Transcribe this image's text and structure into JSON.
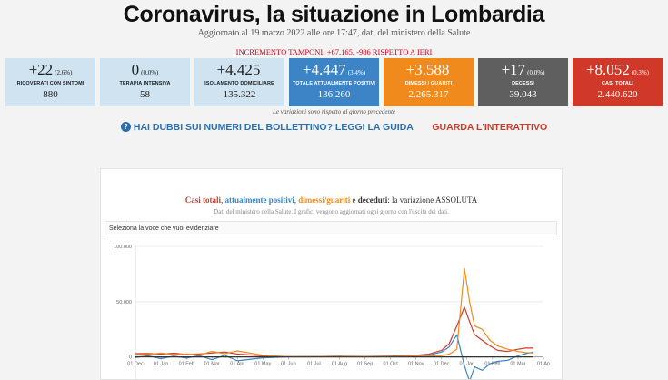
{
  "header": {
    "title": "Coronavirus, la situazione in Lombardia",
    "subtitle": "Aggiornato al 19 marzo 2022 alle ore 17:47, dati del ministero della Salute",
    "tamponi": "INCREMENTO TAMPONI: +67.165, -986 RISPETTO A IERI"
  },
  "cards": [
    {
      "delta": "+22",
      "pct": "(2,6%)",
      "label": "RICOVERATI CON SINTOMI",
      "value": "880",
      "style": "light"
    },
    {
      "delta": "0",
      "pct": "(0,0%)",
      "label": "TERAPIA INTENSIVA",
      "value": "58",
      "style": "light"
    },
    {
      "delta": "+4.425",
      "pct": "",
      "label": "ISOLAMENTO DOMICILIARE",
      "value": "135.322",
      "style": "light"
    },
    {
      "delta": "+4.447",
      "pct": "(3,4%)",
      "label": "TOTALE ATTUALMENTE POSITIVI",
      "value": "136.260",
      "style": "blue"
    },
    {
      "delta": "+3.588",
      "pct": "",
      "label": "DIMESSI / GUARITI",
      "value": "2.265.317",
      "style": "orange"
    },
    {
      "delta": "+17",
      "pct": "(0,0%)",
      "label": "DECESSI",
      "value": "39.043",
      "style": "gray"
    },
    {
      "delta": "+8.052",
      "pct": "(0,3%)",
      "label": "CASI TOTALI",
      "value": "2.440.620",
      "style": "red"
    }
  ],
  "note": "Le variazioni sono rispetto al giorno precedente",
  "links": {
    "help": "HAI DUBBI SUI NUMERI DEL BOLLETTINO? LEGGI LA GUIDA",
    "interactive": "GUARDA L'INTERATTIVO"
  },
  "chart_header": {
    "t1": "Casi totali",
    "sep1": ", ",
    "t2": "attualmente positivi",
    "sep2": ", ",
    "t3": "dimessi/guariti",
    "sep3": " e ",
    "t4": "deceduti",
    "t5": ": la variazione ASSOLUTA",
    "subtitle": "Dati del ministero della Salute. I grafici vengono aggiornati ogni giorno con l'uscita dei dati.",
    "select_placeholder": "Seleziona la voce che vuoi evidenziare"
  },
  "colors": {
    "casi_totali": "#d0392a",
    "attualmente_positivi": "#3c84c5",
    "dimessi_guariti": "#f08a1c",
    "deceduti": "#333333"
  },
  "chart_data": {
    "type": "line",
    "title": "Casi totali, attualmente positivi, dimessi/guariti e deceduti: la variazione ASSOLUTA",
    "ylim": [
      -20000,
      100000
    ],
    "y_ticks": [
      "100.000",
      "50.000",
      "0"
    ],
    "x_ticks": [
      "01 Dec",
      "01 Jan",
      "01 Feb",
      "01 Mar",
      "01 Apr",
      "01 May",
      "01 Jun",
      "01 Jul",
      "01 Aug",
      "01 Sep",
      "01 Oct",
      "01 Nov",
      "01 Dec",
      "01 Jan",
      "01 Feb",
      "01 Mar",
      "01 Ap"
    ],
    "grid": true,
    "series": [
      {
        "name": "Casi totali",
        "color": "#d0392a",
        "x": [
          0,
          0.5,
          1,
          1.5,
          2,
          2.5,
          3,
          3.5,
          4,
          5,
          6,
          7,
          8,
          9,
          10,
          11,
          11.5,
          12,
          12.3,
          12.6,
          12.9,
          13.1,
          13.3,
          13.6,
          13.9,
          14.2,
          14.6,
          15,
          15.3,
          15.6
        ],
        "y": [
          3000,
          3200,
          2500,
          3400,
          2200,
          2800,
          3600,
          4500,
          2600,
          1000,
          300,
          400,
          600,
          500,
          800,
          1500,
          2500,
          6000,
          12000,
          28000,
          45000,
          32000,
          20000,
          15000,
          10000,
          6000,
          5000,
          7000,
          8000,
          8052
        ]
      },
      {
        "name": "attualmente positivi",
        "color": "#3c84c5",
        "x": [
          0,
          0.5,
          1,
          1.5,
          2,
          2.5,
          3,
          3.5,
          4,
          5,
          6,
          7,
          8,
          9,
          10,
          11,
          11.5,
          12,
          12.3,
          12.6,
          12.9,
          13.1,
          13.3,
          13.6,
          13.9,
          14.2,
          14.6,
          15,
          15.3,
          15.6
        ],
        "y": [
          -500,
          1000,
          -1500,
          800,
          -1000,
          1200,
          -2500,
          1500,
          -3500,
          -800,
          100,
          200,
          300,
          200,
          400,
          800,
          1500,
          4500,
          9000,
          20000,
          -8000,
          -22000,
          -9000,
          -12000,
          -6000,
          -4000,
          -3000,
          1000,
          3000,
          4447
        ]
      },
      {
        "name": "dimessi/guariti",
        "color": "#f08a1c",
        "x": [
          0,
          0.5,
          1,
          1.5,
          2,
          2.5,
          3,
          3.5,
          4,
          5,
          6,
          7,
          8,
          9,
          10,
          11,
          11.5,
          12,
          12.3,
          12.6,
          12.9,
          13.1,
          13.3,
          13.6,
          13.9,
          14.2,
          14.6,
          15,
          15.3,
          15.6
        ],
        "y": [
          2500,
          2000,
          3500,
          2000,
          2800,
          1800,
          5000,
          3000,
          5500,
          1500,
          200,
          200,
          300,
          300,
          400,
          600,
          900,
          1300,
          2500,
          7000,
          80000,
          50000,
          28000,
          25000,
          15000,
          10000,
          7000,
          5000,
          4000,
          3588
        ]
      },
      {
        "name": "deceduti",
        "color": "#333333",
        "x": [
          0,
          0.5,
          1,
          1.5,
          2,
          2.5,
          3,
          3.5,
          4,
          5,
          6,
          7,
          8,
          9,
          10,
          11,
          11.5,
          12,
          12.3,
          12.6,
          12.9,
          13.1,
          13.3,
          13.6,
          13.9,
          14.2,
          14.6,
          15,
          15.3,
          15.6
        ],
        "y": [
          120,
          110,
          90,
          80,
          70,
          75,
          90,
          95,
          80,
          40,
          5,
          3,
          4,
          5,
          8,
          15,
          25,
          40,
          55,
          70,
          85,
          75,
          60,
          50,
          40,
          30,
          25,
          20,
          18,
          17
        ]
      }
    ]
  }
}
